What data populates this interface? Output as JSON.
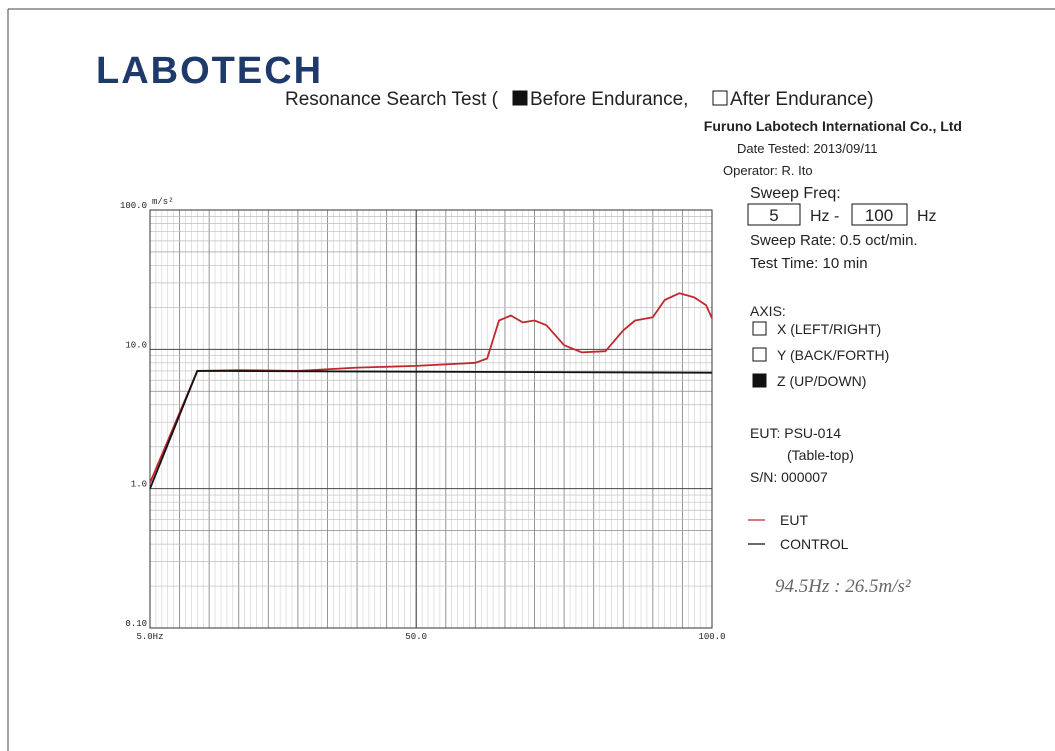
{
  "logo": "LABOTECH",
  "title": {
    "prefix": "Resonance Search Test (",
    "options": [
      {
        "label": "Before Endurance,",
        "checked": true
      },
      {
        "label": "After Endurance)",
        "checked": false
      }
    ]
  },
  "company": "Furuno Labotech International Co., Ltd",
  "date_tested": "Date Tested: 2013/09/11",
  "operator": "Operator: R. Ito",
  "sweep": {
    "label": "Sweep Freq:",
    "from": "5",
    "sep": "Hz -",
    "to": "100",
    "unit": "Hz",
    "rate": "Sweep Rate: 0.5 oct/min.",
    "time": "Test Time: 10 min"
  },
  "axis": {
    "label": "AXIS:",
    "options": [
      {
        "label": "X (LEFT/RIGHT)",
        "checked": false
      },
      {
        "label": "Y (BACK/FORTH)",
        "checked": false
      },
      {
        "label": "Z (UP/DOWN)",
        "checked": true
      }
    ]
  },
  "eut": {
    "name": "EUT: PSU-014",
    "kind": "(Table-top)",
    "serial": "S/N: 000007"
  },
  "note": "94.5Hz : 26.5m/s²",
  "chart_data": {
    "type": "line",
    "y_unit": "m/s²",
    "log_y": true,
    "grid": true,
    "xlim": [
      5,
      100
    ],
    "ylim": [
      0.1,
      100
    ],
    "xticks": [
      {
        "value": 5,
        "label": "5.0Hz"
      },
      {
        "value": 50,
        "label": "50.0"
      },
      {
        "value": 100,
        "label": "100.0"
      }
    ],
    "yticks": [
      {
        "value": 0.1,
        "label": "0.10"
      },
      {
        "value": 1,
        "label": "1.0"
      },
      {
        "value": 10,
        "label": "10.0"
      },
      {
        "value": 100,
        "label": "100.0"
      }
    ],
    "series": [
      {
        "name": "EUT",
        "color": "#c0282e",
        "x": [
          5,
          13,
          20,
          30,
          40,
          50,
          60,
          62,
          64,
          66,
          68,
          70,
          72,
          75,
          78,
          82,
          85,
          87,
          90,
          92,
          94.5,
          97,
          99,
          100
        ],
        "values": [
          1.1,
          7.0,
          7.1,
          7.0,
          7.4,
          7.6,
          8.0,
          8.6,
          16.1,
          17.5,
          15.6,
          16.1,
          14.9,
          10.7,
          9.5,
          9.7,
          13.7,
          16.1,
          17,
          22.6,
          25.3,
          23.6,
          20.7,
          16.7
        ]
      },
      {
        "name": "CONTROL",
        "color": "#111111",
        "x": [
          5,
          13,
          100
        ],
        "values": [
          1.0,
          7.0,
          6.8
        ]
      }
    ]
  }
}
